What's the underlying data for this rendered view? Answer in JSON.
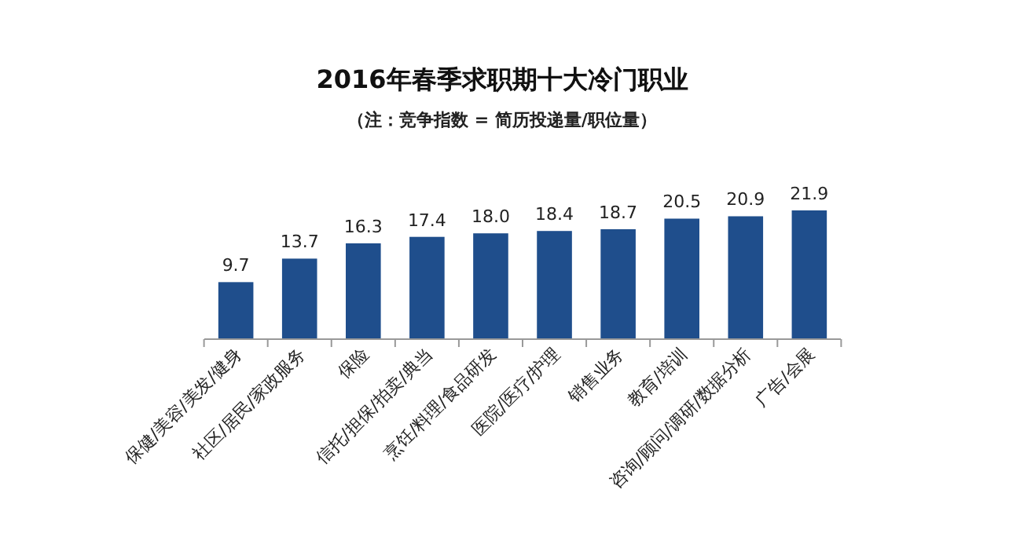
{
  "chart_data": {
    "type": "bar",
    "title": "2016年春季求职期十大冷门职业",
    "subtitle": "（注：竞争指数 = 简历投递量/职位量）",
    "categories": [
      "保健/美容/美发/健身",
      "社区/居民/家政服务",
      "保险",
      "信托/担保/拍卖/典当",
      "烹饪/料理/食品研发",
      "医院/医疗/护理",
      "销售业务",
      "教育/培训",
      "咨询/顾问/调研/数据分析",
      "广告/会展"
    ],
    "values": [
      9.7,
      13.7,
      16.3,
      17.4,
      18.0,
      18.4,
      18.7,
      20.5,
      20.9,
      21.9
    ],
    "color": "#1f4e8c",
    "value_labels": [
      "9.7",
      "13.7",
      "16.3",
      "17.4",
      "18.0",
      "18.4",
      "18.7",
      "20.5",
      "20.9",
      "21.9"
    ]
  }
}
